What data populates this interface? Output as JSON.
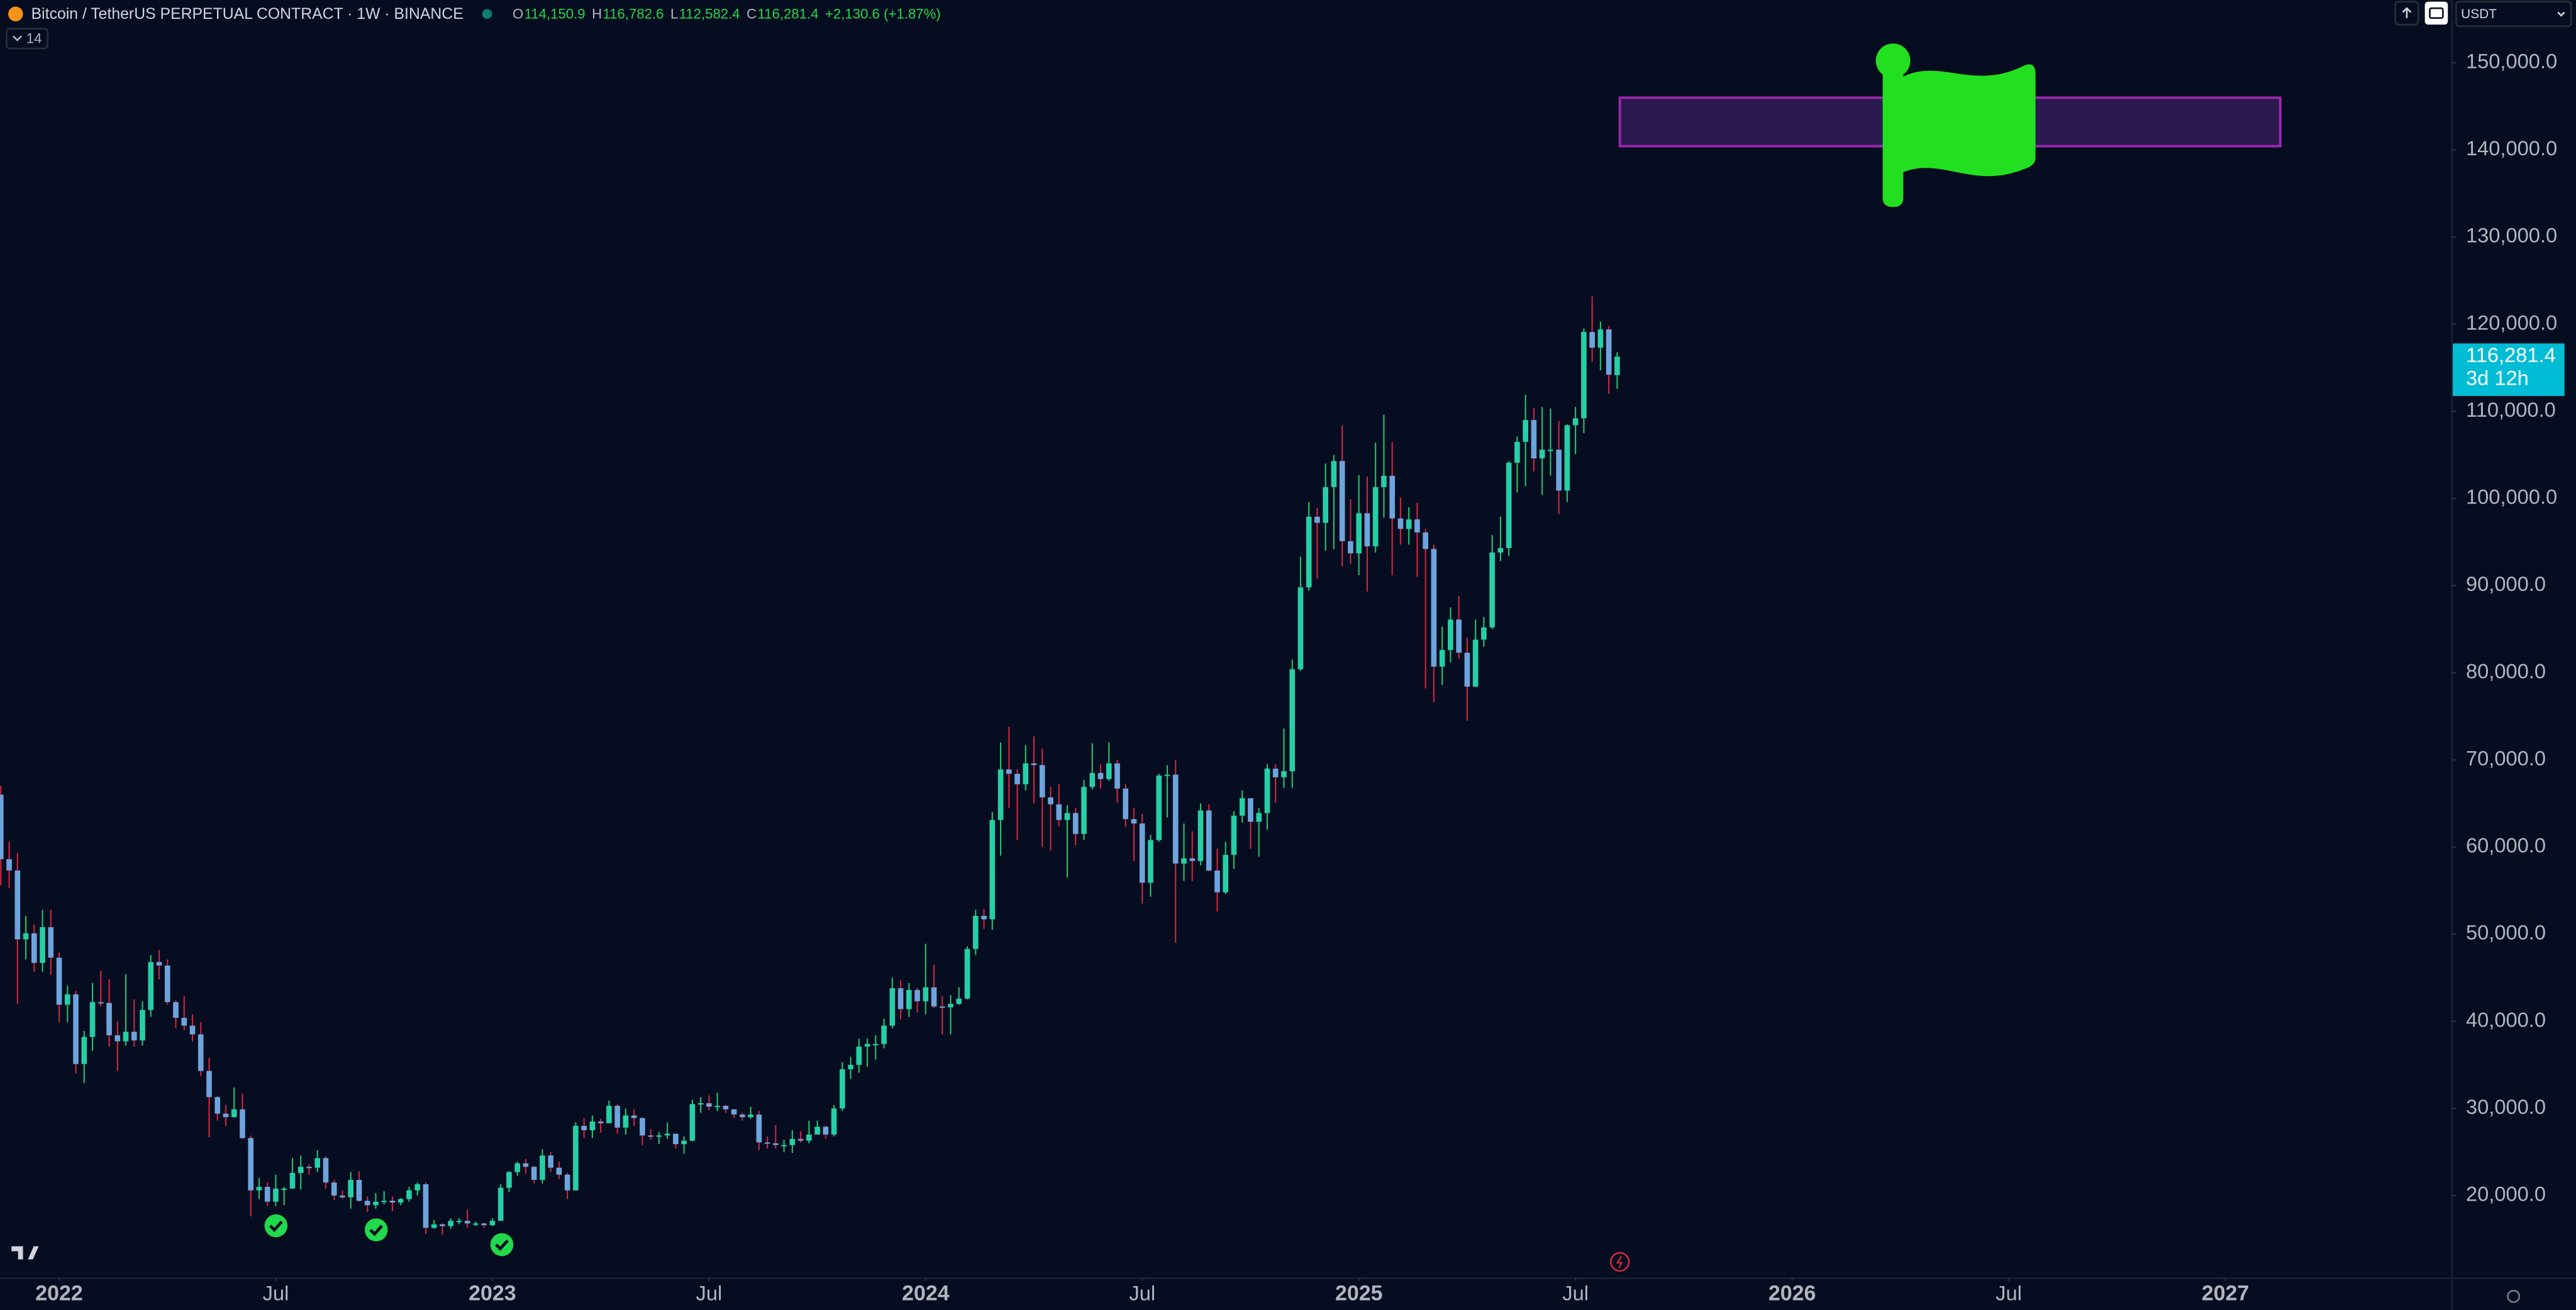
{
  "header": {
    "title": "Bitcoin / TetherUS PERPETUAL CONTRACT · 1W · BINANCE",
    "ohlc_labels": [
      "O",
      "H",
      "L",
      "C"
    ],
    "ohlc_values": [
      "114,150.9",
      "116,782.6",
      "112,582.4",
      "116,281.4"
    ],
    "change": "+2,130.6 (+1.87%)",
    "indicators_count": "14",
    "currency": "USDT"
  },
  "chart_data": {
    "type": "candlestick",
    "open": [
      66000,
      58600,
      57300,
      49400,
      50100,
      46700,
      50800,
      47300,
      41900,
      43100,
      35100,
      38200,
      42200,
      42100,
      38400,
      37700,
      38800,
      37800,
      41300,
      46800,
      46400,
      42200,
      40400,
      39500,
      38500,
      34300,
      31300,
      29400,
      29000,
      29900,
      26600,
      20600,
      21000,
      19300,
      20800,
      20800,
      22600,
      23300,
      23200,
      24300,
      21500,
      20000,
      19800,
      21800,
      19400,
      18900,
      19300,
      19400,
      19200,
      19600,
      20600,
      21300,
      16300,
      16700,
      16500,
      17100,
      17100,
      16800,
      16800,
      16600,
      17100,
      20900,
      22700,
      23700,
      23300,
      21800,
      24600,
      23200,
      22400,
      20600,
      28000,
      27500,
      28500,
      28300,
      30300,
      27800,
      29200,
      28900,
      26900,
      26800,
      26900,
      27100,
      25900,
      26300,
      30500,
      30600,
      30200,
      30300,
      29900,
      29300,
      29000,
      29300,
      26100,
      26000,
      25800,
      25800,
      26500,
      26300,
      27000,
      27900,
      27000,
      30000,
      34500,
      35000,
      37100,
      37400,
      37400,
      39500,
      43800,
      41400,
      43600,
      42300,
      43900,
      41700,
      41600,
      42000,
      42600,
      48300,
      52100,
      51700,
      63100,
      68900,
      68400,
      67200,
      69600,
      69400,
      65700,
      64900,
      63100,
      63900,
      61500,
      66900,
      68500,
      67800,
      69600,
      66700,
      63200,
      62700,
      55900,
      60800,
      68200,
      68300,
      58100,
      58700,
      58400,
      64200,
      57300,
      54800,
      59100,
      63600,
      65600,
      62900,
      63900,
      69000,
      68000,
      68700,
      80400,
      89800,
      97900,
      97200,
      101300,
      104300,
      95100,
      93700,
      98300,
      94500,
      101300,
      102600,
      97700,
      96500,
      97600,
      96100,
      94200,
      80700,
      82600,
      86100,
      82300,
      78400,
      83800,
      85200,
      93800,
      94300,
      104100,
      106500,
      109000,
      104600,
      105600,
      105600,
      100900,
      108400,
      109200,
      119100,
      117300,
      119400,
      114150.9
    ],
    "high": [
      67000,
      60600,
      59300,
      52100,
      51100,
      52800,
      52800,
      47900,
      44100,
      43500,
      38900,
      44400,
      45800,
      44800,
      40000,
      45400,
      42500,
      42300,
      47600,
      48200,
      47100,
      42400,
      42900,
      40800,
      39900,
      35800,
      31400,
      30400,
      32400,
      31700,
      26900,
      22000,
      21500,
      22400,
      21000,
      24300,
      24600,
      23600,
      25200,
      24500,
      21800,
      20600,
      22700,
      22800,
      19900,
      20300,
      20500,
      19900,
      19700,
      21000,
      21500,
      21500,
      17200,
      16800,
      17400,
      17400,
      18400,
      17000,
      16900,
      17400,
      21300,
      22800,
      23900,
      24200,
      23400,
      25300,
      25000,
      23900,
      22600,
      28400,
      28900,
      29200,
      28800,
      30900,
      30500,
      30000,
      29900,
      29000,
      27600,
      27300,
      28400,
      27100,
      26800,
      31000,
      31300,
      31500,
      31800,
      30400,
      29900,
      29500,
      30200,
      29700,
      26800,
      28100,
      26400,
      27500,
      27400,
      28600,
      28600,
      28000,
      30400,
      35300,
      35900,
      38000,
      38000,
      38400,
      40300,
      45000,
      44700,
      44400,
      43800,
      48900,
      46500,
      42900,
      43000,
      43900,
      48600,
      52800,
      52900,
      64000,
      72000,
      73800,
      68900,
      71700,
      72700,
      71300,
      66900,
      67200,
      64800,
      64500,
      67700,
      71900,
      69500,
      72000,
      70000,
      67200,
      64500,
      63800,
      61400,
      68400,
      69400,
      70000,
      62700,
      61800,
      65000,
      64900,
      59800,
      60600,
      64100,
      66500,
      65600,
      64500,
      69500,
      69500,
      73600,
      81500,
      93300,
      99600,
      98900,
      104000,
      105000,
      108400,
      99900,
      102700,
      102500,
      106400,
      109600,
      106500,
      100100,
      99000,
      99500,
      96500,
      94700,
      85300,
      87500,
      88800,
      84000,
      86100,
      86400,
      95800,
      97900,
      104300,
      107100,
      111900,
      110400,
      110500,
      110300,
      108900,
      108500,
      110500,
      119500,
      123200,
      120300,
      119800,
      116782.6
    ],
    "low": [
      55600,
      55300,
      42000,
      47100,
      45700,
      45700,
      45300,
      39900,
      39900,
      34000,
      32900,
      36600,
      41700,
      37100,
      34300,
      37200,
      37100,
      37200,
      40500,
      44800,
      41900,
      39200,
      39000,
      37700,
      33700,
      26700,
      28600,
      28000,
      29000,
      26500,
      17600,
      19600,
      18800,
      18800,
      18900,
      20800,
      20700,
      22400,
      22700,
      20800,
      19500,
      19600,
      18500,
      19300,
      18100,
      18500,
      19000,
      18200,
      18900,
      19300,
      20000,
      15600,
      16200,
      15500,
      16200,
      16700,
      16300,
      16500,
      16300,
      16500,
      17100,
      20400,
      22300,
      22500,
      21400,
      21400,
      22700,
      21900,
      19600,
      20600,
      26600,
      26600,
      27200,
      28300,
      27100,
      27000,
      28000,
      25800,
      26400,
      25900,
      26500,
      25400,
      24800,
      26200,
      29500,
      29800,
      29700,
      29500,
      28900,
      28600,
      28800,
      25200,
      25400,
      25400,
      25000,
      24900,
      26100,
      26000,
      27000,
      26500,
      26800,
      29700,
      33400,
      34100,
      34800,
      35600,
      36900,
      39200,
      40200,
      40500,
      41000,
      40800,
      41500,
      38500,
      38500,
      41900,
      42500,
      47600,
      50600,
      50500,
      59000,
      64500,
      60800,
      66500,
      65000,
      60000,
      59600,
      62400,
      56500,
      60200,
      60800,
      66600,
      66700,
      67600,
      65100,
      62300,
      58400,
      53500,
      54300,
      60600,
      63400,
      49000,
      56100,
      56100,
      57900,
      57200,
      52600,
      54600,
      57500,
      62800,
      59800,
      58900,
      62000,
      65100,
      66800,
      66800,
      80200,
      89400,
      90800,
      94000,
      94200,
      92200,
      92500,
      91200,
      89300,
      93800,
      97800,
      91200,
      94700,
      94700,
      91000,
      78200,
      76600,
      78600,
      81200,
      81600,
      74500,
      78400,
      83000,
      85000,
      92800,
      93400,
      100700,
      101400,
      103100,
      100400,
      102600,
      98200,
      99600,
      105100,
      107500,
      115700,
      114700,
      112000,
      112582.4
    ],
    "close": [
      58600,
      57300,
      49400,
      50100,
      46700,
      50800,
      47300,
      41900,
      43100,
      35100,
      38200,
      42200,
      42100,
      38400,
      37700,
      38800,
      37800,
      41300,
      46800,
      46400,
      42200,
      40400,
      39500,
      38500,
      34300,
      31300,
      29400,
      29000,
      29900,
      26600,
      20600,
      21000,
      19300,
      20800,
      20800,
      22600,
      23300,
      23200,
      24300,
      21500,
      20000,
      19800,
      21800,
      19400,
      18900,
      19300,
      19400,
      19200,
      19600,
      20600,
      21300,
      16300,
      16700,
      16500,
      17100,
      17100,
      16800,
      16800,
      16600,
      17100,
      20900,
      22700,
      23700,
      23300,
      21800,
      24600,
      23200,
      22400,
      20600,
      28000,
      27500,
      28500,
      28300,
      30300,
      27800,
      29200,
      28900,
      26900,
      26800,
      26900,
      27100,
      25900,
      26300,
      30500,
      30600,
      30200,
      30300,
      29900,
      29300,
      29000,
      29300,
      26100,
      26000,
      25800,
      25800,
      26500,
      26300,
      27000,
      27900,
      27000,
      30000,
      34500,
      35000,
      37100,
      37400,
      37400,
      39500,
      43800,
      41400,
      43600,
      42300,
      43900,
      41700,
      41600,
      42000,
      42600,
      48300,
      52100,
      51700,
      63100,
      68900,
      68400,
      67200,
      69600,
      69400,
      65700,
      64900,
      63100,
      63900,
      61500,
      66900,
      68500,
      67800,
      69600,
      66700,
      63200,
      62700,
      55900,
      60800,
      68200,
      68300,
      58100,
      58700,
      58400,
      64200,
      57300,
      54800,
      59100,
      63600,
      65600,
      62900,
      63900,
      69000,
      68000,
      68700,
      80400,
      89800,
      97900,
      97200,
      101300,
      104300,
      95100,
      93700,
      98300,
      94500,
      101300,
      102600,
      97700,
      96500,
      97600,
      96100,
      94200,
      80700,
      82600,
      86100,
      82300,
      78400,
      83800,
      85200,
      93800,
      94300,
      104100,
      106500,
      109000,
      104600,
      105600,
      105600,
      100900,
      108400,
      109200,
      119100,
      117300,
      119400,
      114200,
      116281.4
    ],
    "up_color": "#26cfa6",
    "down_color": "#6ea4dc",
    "up_wick_color": "#22c46e",
    "down_wick_color": "#d1263e",
    "last_price_label": "116,281.4",
    "countdown": "3d 12h",
    "last_price_color": "#00bcd4",
    "grid": false,
    "xlim": [
      -0.1,
      294.1
    ],
    "xticks": [
      {
        "value": 7,
        "label": "2022"
      },
      {
        "value": 33,
        "label": "Jul"
      },
      {
        "value": 59,
        "label": "2023"
      },
      {
        "value": 85,
        "label": "Jul"
      },
      {
        "value": 111,
        "label": "2024"
      },
      {
        "value": 137,
        "label": "Jul"
      },
      {
        "value": 163,
        "label": "2025"
      },
      {
        "value": 189,
        "label": "Jul"
      },
      {
        "value": 215,
        "label": "2026"
      },
      {
        "value": 241,
        "label": "Jul"
      },
      {
        "value": 267,
        "label": "2027"
      }
    ],
    "ylim": [
      10600,
      157200
    ],
    "yticks": [
      {
        "value": 20000,
        "label": "20,000.0"
      },
      {
        "value": 30000,
        "label": "30,000.0"
      },
      {
        "value": 40000,
        "label": "40,000.0"
      },
      {
        "value": 50000,
        "label": "50,000.0"
      },
      {
        "value": 60000,
        "label": "60,000.0"
      },
      {
        "value": 70000,
        "label": "70,000.0"
      },
      {
        "value": 80000,
        "label": "80,000.0"
      },
      {
        "value": 90000,
        "label": "90,000.0"
      },
      {
        "value": 100000,
        "label": "100,000.0"
      },
      {
        "value": 110000,
        "label": "110,000.0"
      },
      {
        "value": 120000,
        "label": "120,000.0"
      },
      {
        "value": 130000,
        "label": "130,000.0"
      },
      {
        "value": 140000,
        "label": "140,000.0"
      },
      {
        "value": 150000,
        "label": "150,000.0"
      }
    ]
  }
}
